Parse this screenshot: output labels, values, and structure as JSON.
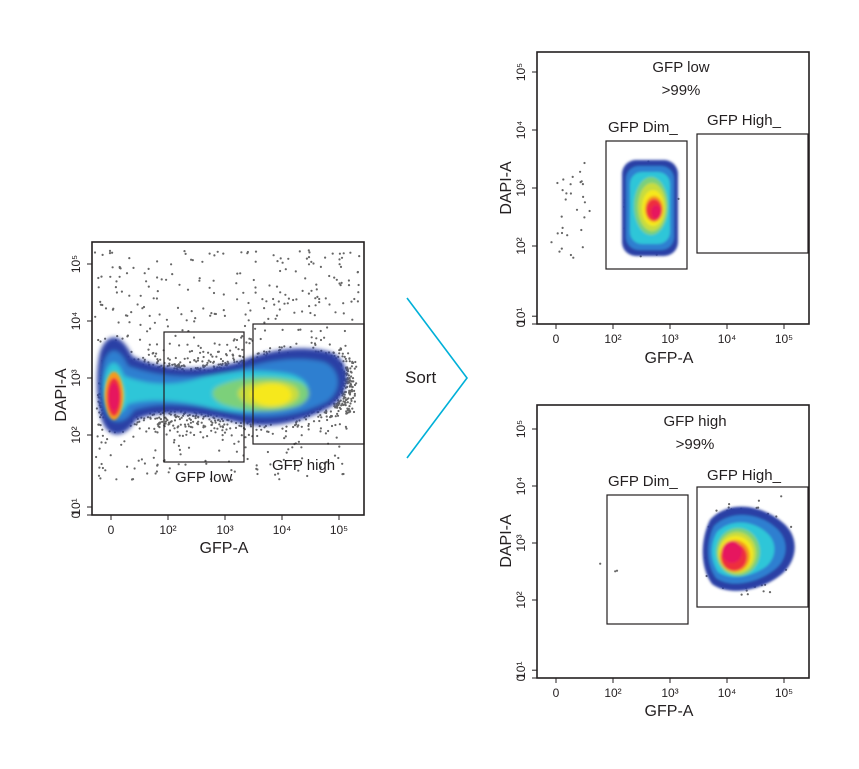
{
  "colors": {
    "axis": "#231f20",
    "scatter_dot": "#666666",
    "sort_arrow": "#00b0d8",
    "density_scale": [
      "#2a3fa5",
      "#2f7fd0",
      "#2fc6d8",
      "#7cd07a",
      "#c8dc3c",
      "#f6e81a",
      "#f49a1f",
      "#ee2f3c",
      "#e6175f"
    ]
  },
  "sort": {
    "label": "Sort"
  },
  "chart_data": [
    {
      "id": "before-sort",
      "type": "scatter",
      "xlabel": "GFP-A",
      "ylabel": "DAPI-A",
      "xscale": "biexponential",
      "yscale": "biexponential",
      "xticks": [
        {
          "value": 0,
          "label": "0"
        },
        {
          "value": 100,
          "label": "10²"
        },
        {
          "value": 1000,
          "label": "10³"
        },
        {
          "value": 10000,
          "label": "10⁴"
        },
        {
          "value": 100000,
          "label": "10⁵"
        }
      ],
      "yticks": [
        {
          "value": 0,
          "label": "0"
        },
        {
          "value": 10,
          "label": "10¹"
        },
        {
          "value": 100,
          "label": "10²"
        },
        {
          "value": 1000,
          "label": "10³"
        },
        {
          "value": 10000,
          "label": "10⁴"
        },
        {
          "value": 100000,
          "label": "10⁵"
        }
      ],
      "gates": [
        {
          "name": "GFP low",
          "label": "GFP low",
          "x": [
            80,
            2500
          ],
          "y": [
            40,
            6000
          ]
        },
        {
          "name": "GFP high",
          "label": "GFP high",
          "x": [
            3500,
            250000
          ],
          "y": [
            70,
            8000
          ]
        }
      ],
      "populations": [
        {
          "x": 0,
          "y": 500,
          "note": "GFP-negative cluster"
        },
        {
          "x": 12000,
          "y": 600,
          "note": "GFP-high cluster"
        }
      ]
    },
    {
      "id": "sorted-gfp-low",
      "type": "scatter",
      "xlabel": "GFP-A",
      "ylabel": "DAPI-A",
      "title": "GFP low",
      "subtitle": ">99%",
      "xticks": [
        {
          "value": 0,
          "label": "0"
        },
        {
          "value": 100,
          "label": "10²"
        },
        {
          "value": 1000,
          "label": "10³"
        },
        {
          "value": 10000,
          "label": "10⁴"
        },
        {
          "value": 100000,
          "label": "10⁵"
        }
      ],
      "yticks": [
        {
          "value": 0,
          "label": "0"
        },
        {
          "value": 10,
          "label": "10¹"
        },
        {
          "value": 100,
          "label": "10²"
        },
        {
          "value": 1000,
          "label": "10³"
        },
        {
          "value": 10000,
          "label": "10⁴"
        },
        {
          "value": 100000,
          "label": "10⁵"
        }
      ],
      "gates": [
        {
          "name": "GFP Dim_",
          "label": "GFP Dim_",
          "x": [
            80,
            2500
          ],
          "y": [
            40,
            6000
          ]
        },
        {
          "name": "GFP High_",
          "label": "GFP High_",
          "x": [
            3500,
            250000
          ],
          "y": [
            70,
            8000
          ]
        }
      ],
      "purity": ">99%"
    },
    {
      "id": "sorted-gfp-high",
      "type": "scatter",
      "xlabel": "GFP-A",
      "ylabel": "DAPI-A",
      "title": "GFP high",
      "subtitle": ">99%",
      "xticks": [
        {
          "value": 0,
          "label": "0"
        },
        {
          "value": 100,
          "label": "10²"
        },
        {
          "value": 1000,
          "label": "10³"
        },
        {
          "value": 10000,
          "label": "10⁴"
        },
        {
          "value": 100000,
          "label": "10⁵"
        }
      ],
      "yticks": [
        {
          "value": 0,
          "label": "0"
        },
        {
          "value": 10,
          "label": "10¹"
        },
        {
          "value": 100,
          "label": "10²"
        },
        {
          "value": 1000,
          "label": "10³"
        },
        {
          "value": 10000,
          "label": "10⁴"
        },
        {
          "value": 100000,
          "label": "10⁵"
        }
      ],
      "gates": [
        {
          "name": "GFP Dim_",
          "label": "GFP Dim_",
          "x": [
            80,
            2500
          ],
          "y": [
            40,
            6000
          ]
        },
        {
          "name": "GFP High_",
          "label": "GFP High_",
          "x": [
            3500,
            250000
          ],
          "y": [
            70,
            8000
          ]
        }
      ],
      "purity": ">99%"
    }
  ]
}
